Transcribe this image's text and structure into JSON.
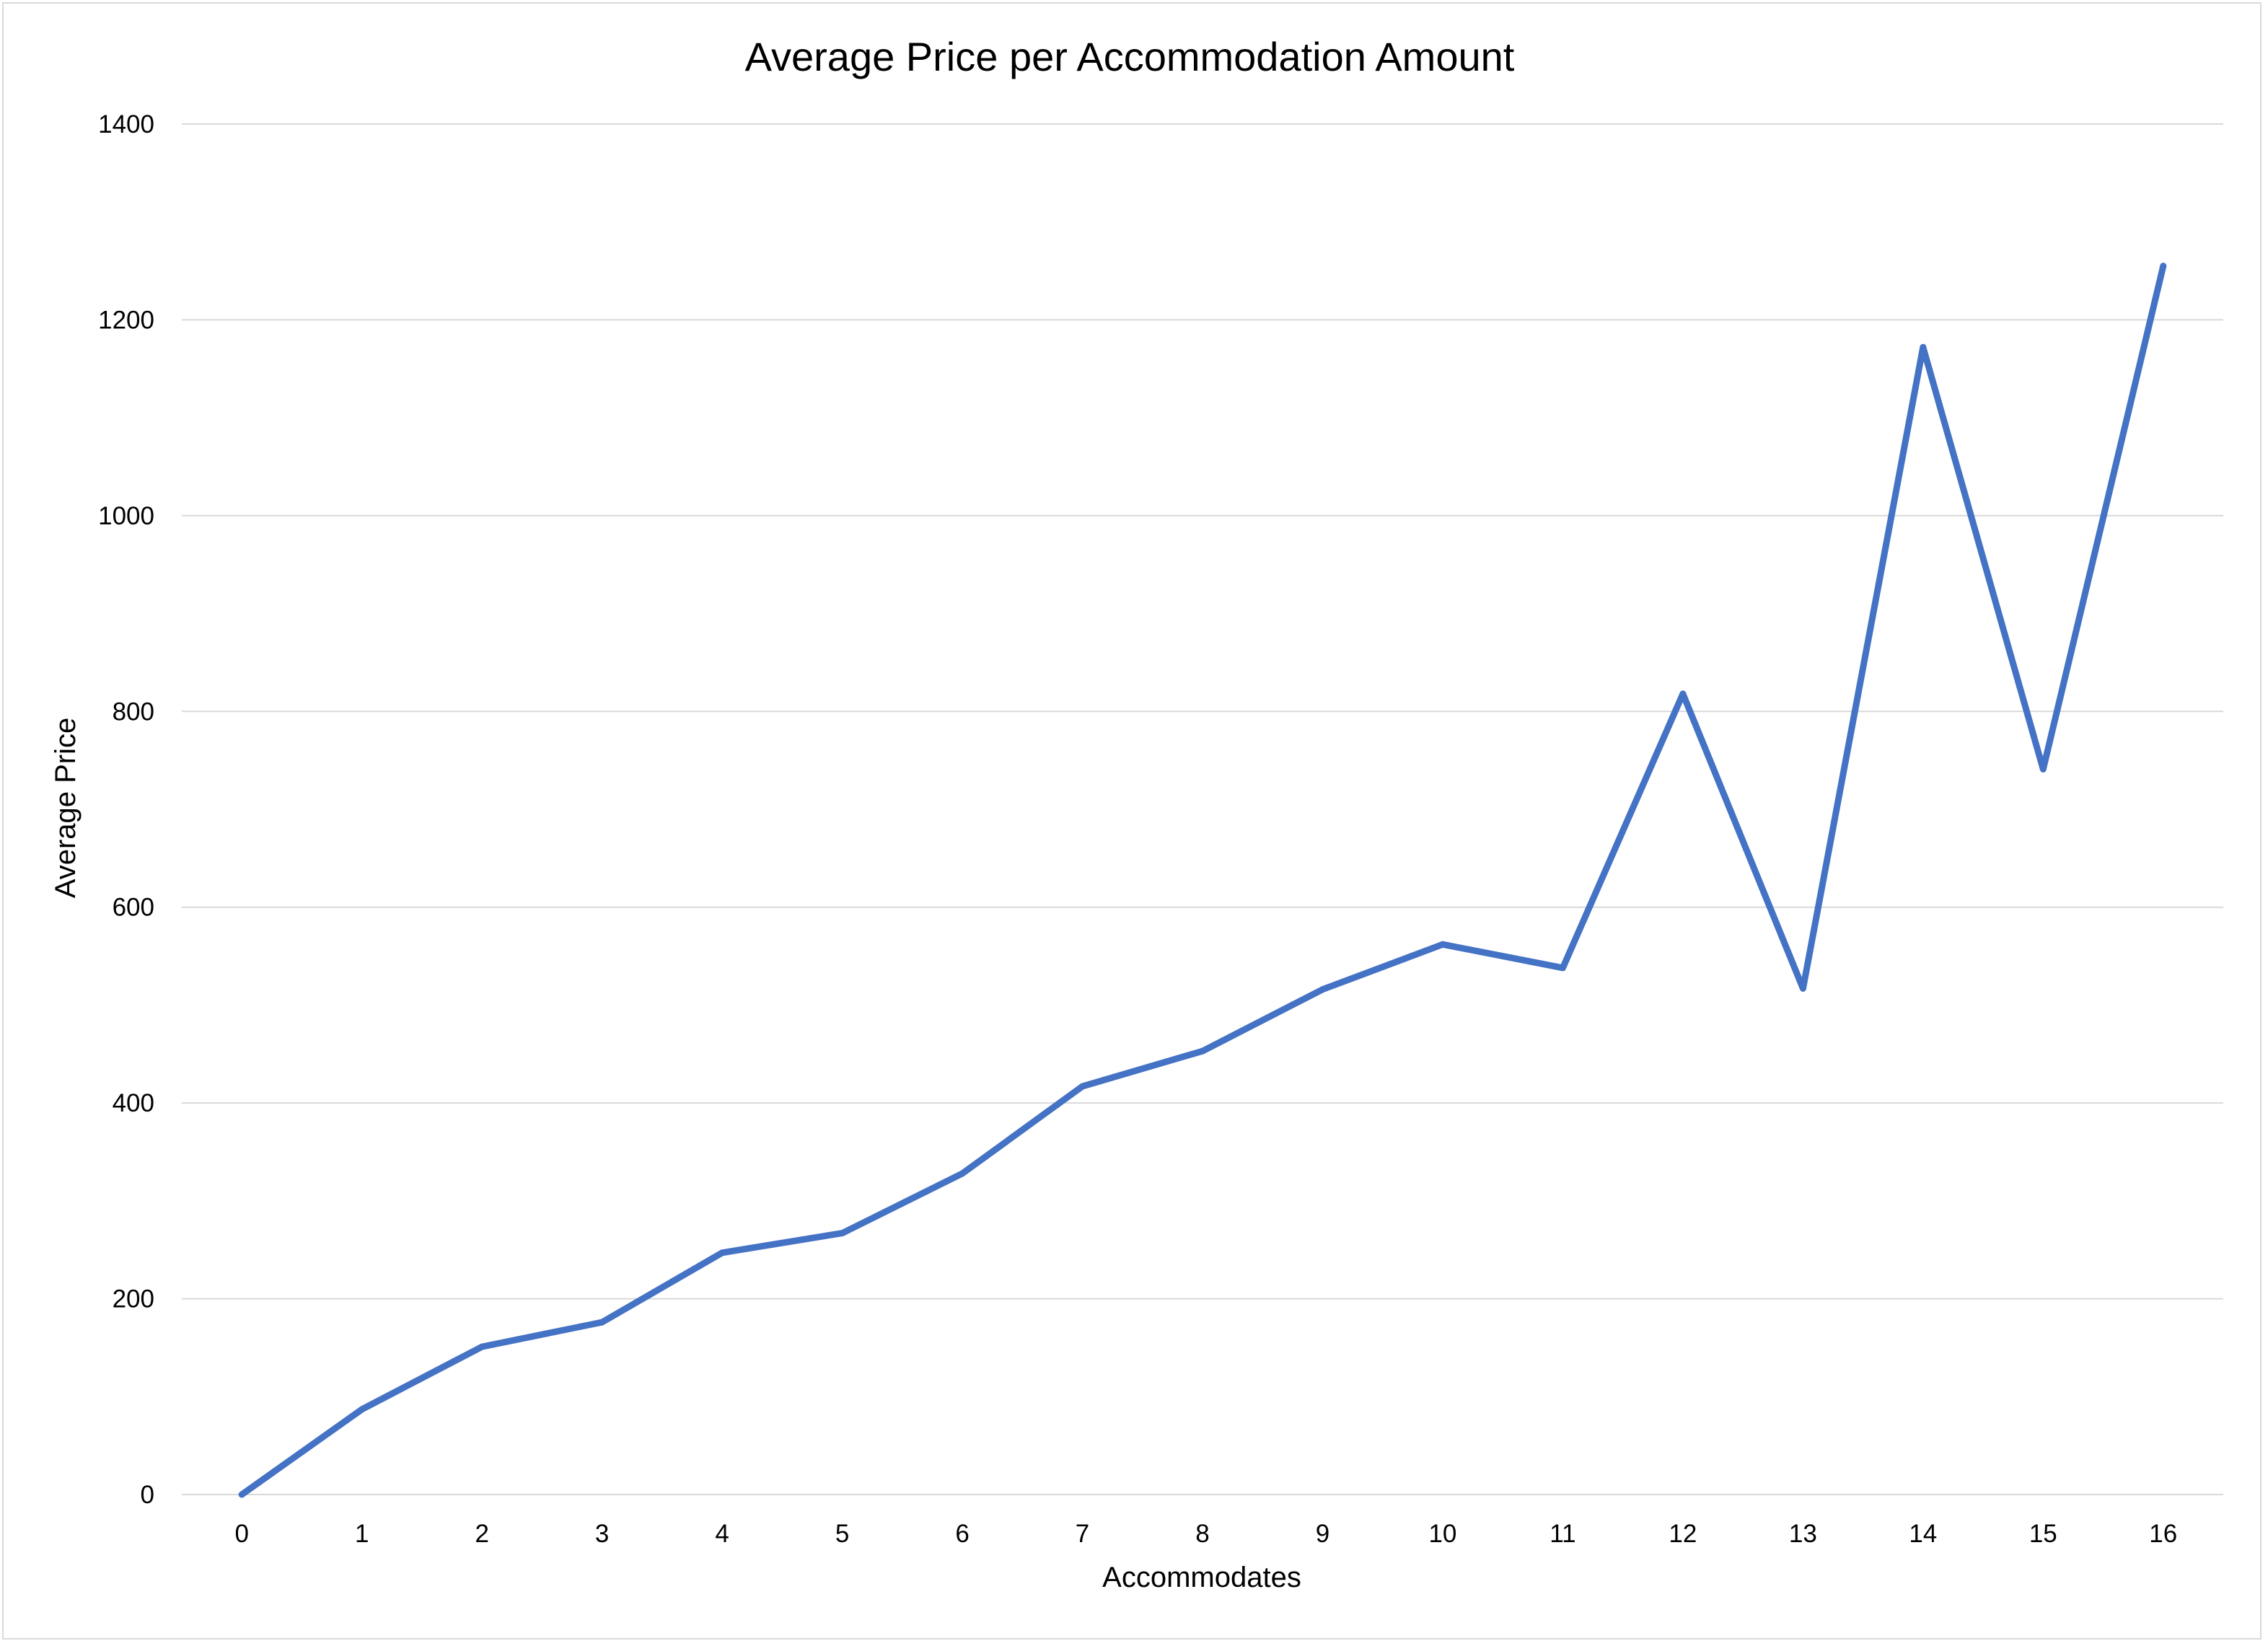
{
  "chart_data": {
    "type": "line",
    "title": "Average Price per Accommodation Amount",
    "xlabel": "Accommodates",
    "ylabel": "Average Price",
    "categories": [
      "0",
      "1",
      "2",
      "3",
      "4",
      "5",
      "6",
      "7",
      "8",
      "9",
      "10",
      "11",
      "12",
      "13",
      "14",
      "15",
      "16"
    ],
    "series": [
      {
        "values": [
          0,
          87,
          151,
          176,
          247,
          267,
          328,
          417,
          453,
          516,
          562,
          538,
          818,
          517,
          1172,
          741,
          1255
        ],
        "color": "#4472c4"
      }
    ],
    "ylim": [
      0,
      1400
    ],
    "yticks": [
      0,
      200,
      400,
      600,
      800,
      1000,
      1200,
      1400
    ],
    "grid": true,
    "legend": "none"
  }
}
